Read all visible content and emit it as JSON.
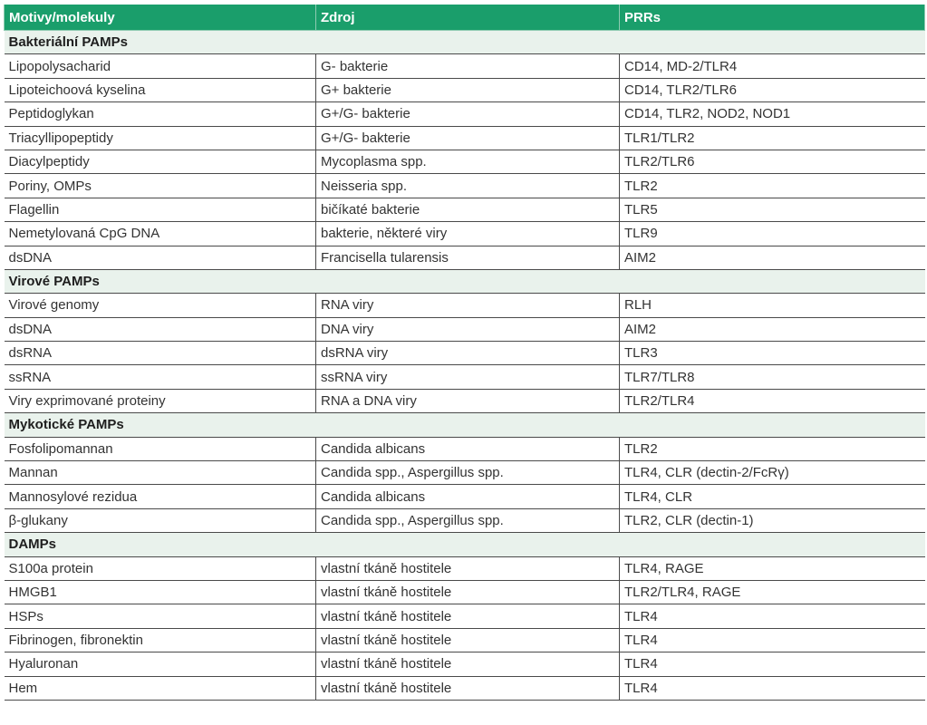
{
  "table": {
    "headers": [
      "Motivy/molekuly",
      "Zdroj",
      "PRRs"
    ],
    "sections": [
      {
        "title": "Bakteriální PAMPs",
        "rows": [
          [
            "Lipopolysacharid",
            "G- bakterie",
            "CD14, MD-2/TLR4"
          ],
          [
            "Lipoteichoová kyselina",
            "G+ bakterie",
            "CD14, TLR2/TLR6"
          ],
          [
            "Peptidoglykan",
            "G+/G- bakterie",
            "CD14, TLR2, NOD2, NOD1"
          ],
          [
            "Triacyllipopeptidy",
            "G+/G- bakterie",
            "TLR1/TLR2"
          ],
          [
            "Diacylpeptidy",
            "Mycoplasma spp.",
            "TLR2/TLR6"
          ],
          [
            "Poriny, OMPs",
            "Neisseria spp.",
            "TLR2"
          ],
          [
            "Flagellin",
            "bičíkaté bakterie",
            "TLR5"
          ],
          [
            "Nemetylovaná CpG DNA",
            "bakterie, některé viry",
            "TLR9"
          ],
          [
            "dsDNA",
            "Francisella tularensis",
            "AIM2"
          ]
        ]
      },
      {
        "title": "Virové PAMPs",
        "rows": [
          [
            "Virové genomy",
            "RNA viry",
            "RLH"
          ],
          [
            "dsDNA",
            "DNA viry",
            "AIM2"
          ],
          [
            "dsRNA",
            "dsRNA viry",
            "TLR3"
          ],
          [
            "ssRNA",
            "ssRNA viry",
            "TLR7/TLR8"
          ],
          [
            "Viry exprimované proteiny",
            "RNA a DNA viry",
            "TLR2/TLR4"
          ]
        ]
      },
      {
        "title": "Mykotické PAMPs",
        "rows": [
          [
            "Fosfolipomannan",
            "Candida albicans",
            "TLR2"
          ],
          [
            "Mannan",
            "Candida spp., Aspergillus spp.",
            "TLR4, CLR (dectin-2/FcRγ)"
          ],
          [
            "Mannosylové rezidua",
            "Candida albicans",
            "TLR4, CLR"
          ],
          [
            "β-glukany",
            "Candida spp., Aspergillus spp.",
            "TLR2, CLR (dectin-1)"
          ]
        ]
      },
      {
        "title": "DAMPs",
        "rows": [
          [
            "S100a protein",
            "vlastní tkáně hostitele",
            "TLR4, RAGE"
          ],
          [
            "HMGB1",
            "vlastní tkáně hostitele",
            "TLR2/TLR4, RAGE"
          ],
          [
            "HSPs",
            "vlastní tkáně hostitele",
            "TLR4"
          ],
          [
            "Fibrinogen, fibronektin",
            "vlastní tkáně hostitele",
            "TLR4"
          ],
          [
            "Hyaluronan",
            "vlastní tkáně hostitele",
            "TLR4"
          ],
          [
            "Hem",
            "vlastní tkáně hostitele",
            "TLR4"
          ]
        ]
      }
    ],
    "colors": {
      "header_bg": "#1a9e6b",
      "section_bg": "#e9f2ec",
      "border": "#4a4a4a"
    }
  }
}
